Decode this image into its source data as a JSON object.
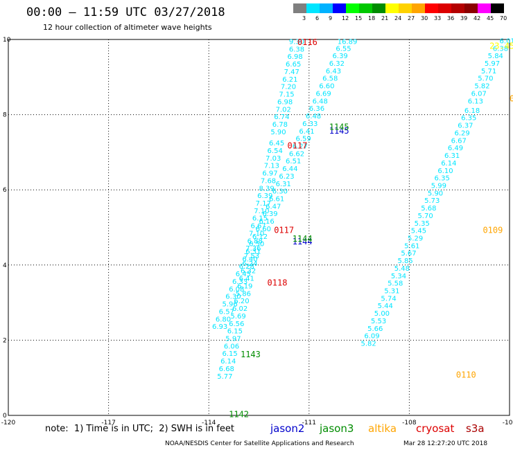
{
  "header": {
    "title": "00:00 — 11:59 UTC 03/27/2018",
    "subtitle": "12 hour collection of altimeter wave heights"
  },
  "color_scale": {
    "labels": [
      "3",
      "6",
      "9",
      "12",
      "15",
      "18",
      "21",
      "24",
      "27",
      "30",
      "33",
      "36",
      "39",
      "42",
      "45",
      "70",
      "(ft)"
    ],
    "colors": [
      "#7f7f7f",
      "#00e5ff",
      "#00b2ff",
      "#0000ff",
      "#00ff00",
      "#00c800",
      "#008c00",
      "#ffff00",
      "#ffd200",
      "#ffa500",
      "#ff0000",
      "#dc0000",
      "#b40000",
      "#8b0000",
      "#ff00ff",
      "#000000"
    ]
  },
  "footer": {
    "note": "note:  1) Time is in UTC;  2) SWH is in feet",
    "satellites": [
      {
        "name": "jason2",
        "color": "#0000cc"
      },
      {
        "name": "jason3",
        "color": "#008c00"
      },
      {
        "name": "altika",
        "color": "#ffa500"
      },
      {
        "name": "cryosat",
        "color": "#dd0000"
      },
      {
        "name": "s3a",
        "color": "#aa0000"
      }
    ],
    "credit": "NOAA/NESDIS Center for Satellite Applications and Research",
    "timestamp": "Mar 28 12:27:20 UTC 2018"
  },
  "chart_data": {
    "type": "scatter",
    "title": "00:00 — 11:59 UTC 03/27/2018",
    "subtitle": "12 hour collection of altimeter wave heights",
    "xlim": [
      -120,
      -105
    ],
    "ylim": [
      0,
      10
    ],
    "x_ticks": [
      "-120",
      "-117",
      "-114",
      "-111",
      "-108",
      "-105"
    ],
    "y_ticks": [
      "0",
      "2",
      "4",
      "6",
      "8",
      "10"
    ],
    "grid": true,
    "tracks": [
      {
        "satellite": "jason3",
        "color": "#00e5ff",
        "points": [
          {
            "x": -111.6,
            "y": 9.88,
            "v": "9.30"
          },
          {
            "x": -111.6,
            "y": 9.68,
            "v": "6.38"
          },
          {
            "x": -111.65,
            "y": 9.48,
            "v": "6.98"
          },
          {
            "x": -111.7,
            "y": 9.28,
            "v": "6.65"
          },
          {
            "x": -111.75,
            "y": 9.08,
            "v": "7.47"
          },
          {
            "x": -111.8,
            "y": 8.88,
            "v": "6.21"
          },
          {
            "x": -111.85,
            "y": 8.68,
            "v": "7.20"
          },
          {
            "x": -111.9,
            "y": 8.48,
            "v": "7.15"
          },
          {
            "x": -111.95,
            "y": 8.28,
            "v": "6.98"
          },
          {
            "x": -112.0,
            "y": 8.08,
            "v": "7.02"
          },
          {
            "x": -112.05,
            "y": 7.88,
            "v": "6.74"
          },
          {
            "x": -112.1,
            "y": 7.68,
            "v": "6.78"
          },
          {
            "x": -112.15,
            "y": 7.48,
            "v": "5.90"
          },
          {
            "x": -112.2,
            "y": 7.18,
            "v": "6.45"
          },
          {
            "x": -112.25,
            "y": 6.98,
            "v": "6.54"
          },
          {
            "x": -112.3,
            "y": 6.78,
            "v": "7.03"
          },
          {
            "x": -112.35,
            "y": 6.58,
            "v": "7.13"
          },
          {
            "x": -112.4,
            "y": 6.38,
            "v": "6.97"
          },
          {
            "x": -112.45,
            "y": 6.18,
            "v": "7.68"
          },
          {
            "x": -112.5,
            "y": 5.98,
            "v": "8.39"
          },
          {
            "x": -112.55,
            "y": 5.78,
            "v": "6.39"
          },
          {
            "x": -112.6,
            "y": 5.58,
            "v": "7.17"
          },
          {
            "x": -112.65,
            "y": 5.38,
            "v": "7.10"
          },
          {
            "x": -112.7,
            "y": 5.18,
            "v": "6.15"
          },
          {
            "x": -112.75,
            "y": 4.98,
            "v": "6.67"
          },
          {
            "x": -112.8,
            "y": 4.78,
            "v": "7.10"
          },
          {
            "x": -112.85,
            "y": 4.58,
            "v": "6.88"
          },
          {
            "x": -112.9,
            "y": 4.38,
            "v": "7.36"
          },
          {
            "x": -112.95,
            "y": 4.18,
            "v": "7.53"
          },
          {
            "x": -113.0,
            "y": 3.98,
            "v": "6.24"
          },
          {
            "x": -113.05,
            "y": 3.78,
            "v": "6.32"
          },
          {
            "x": -113.1,
            "y": 3.58,
            "v": "6.41"
          },
          {
            "x": -113.15,
            "y": 3.38,
            "v": "6.19"
          },
          {
            "x": -113.2,
            "y": 3.18,
            "v": "5.86"
          },
          {
            "x": -113.25,
            "y": 2.98,
            "v": "6.20"
          },
          {
            "x": -113.3,
            "y": 2.78,
            "v": "6.02"
          },
          {
            "x": -113.35,
            "y": 2.58,
            "v": "5.69"
          },
          {
            "x": -113.4,
            "y": 2.38,
            "v": "6.56"
          },
          {
            "x": -113.45,
            "y": 2.18,
            "v": "6.15"
          },
          {
            "x": -113.5,
            "y": 1.98,
            "v": "5.97"
          },
          {
            "x": -113.55,
            "y": 1.78,
            "v": "6.06"
          },
          {
            "x": -113.6,
            "y": 1.58,
            "v": "6.15"
          },
          {
            "x": -113.65,
            "y": 1.38,
            "v": "6.14"
          },
          {
            "x": -113.7,
            "y": 1.18,
            "v": "6.68"
          },
          {
            "x": -113.75,
            "y": 0.98,
            "v": "5.77"
          }
        ]
      },
      {
        "satellite": "jason2",
        "color": "#00e5ff",
        "points": [
          {
            "x": -110.15,
            "y": 9.88,
            "v": "16.89"
          },
          {
            "x": -110.2,
            "y": 9.7,
            "v": "6.55"
          },
          {
            "x": -110.3,
            "y": 9.5,
            "v": "6.39"
          },
          {
            "x": -110.4,
            "y": 9.3,
            "v": "6.32"
          },
          {
            "x": -110.5,
            "y": 9.1,
            "v": "6.43"
          },
          {
            "x": -110.6,
            "y": 8.9,
            "v": "6.58"
          },
          {
            "x": -110.7,
            "y": 8.7,
            "v": "6.60"
          },
          {
            "x": -110.8,
            "y": 8.5,
            "v": "6.69"
          },
          {
            "x": -110.9,
            "y": 8.3,
            "v": "6.48"
          },
          {
            "x": -111.0,
            "y": 8.1,
            "v": "6.36"
          },
          {
            "x": -111.1,
            "y": 7.9,
            "v": "6.48"
          },
          {
            "x": -111.2,
            "y": 7.7,
            "v": "6.33"
          },
          {
            "x": -111.3,
            "y": 7.5,
            "v": "6.41"
          },
          {
            "x": -111.4,
            "y": 7.3,
            "v": "6.59"
          },
          {
            "x": -111.5,
            "y": 7.1,
            "v": "6.27"
          },
          {
            "x": -111.6,
            "y": 6.9,
            "v": "6.62"
          },
          {
            "x": -111.7,
            "y": 6.7,
            "v": "6.51"
          },
          {
            "x": -111.8,
            "y": 6.5,
            "v": "6.44"
          },
          {
            "x": -111.9,
            "y": 6.3,
            "v": "6.23"
          },
          {
            "x": -112.0,
            "y": 6.1,
            "v": "6.31"
          },
          {
            "x": -112.1,
            "y": 5.9,
            "v": "6.30"
          },
          {
            "x": -112.2,
            "y": 5.7,
            "v": "6.61"
          },
          {
            "x": -112.3,
            "y": 5.5,
            "v": "6.47"
          },
          {
            "x": -112.4,
            "y": 5.3,
            "v": "6.39"
          },
          {
            "x": -112.5,
            "y": 5.1,
            "v": "6.16"
          },
          {
            "x": -112.6,
            "y": 4.9,
            "v": "6.60"
          },
          {
            "x": -112.7,
            "y": 4.7,
            "v": "6.12"
          },
          {
            "x": -112.8,
            "y": 4.5,
            "v": "6.50"
          },
          {
            "x": -112.9,
            "y": 4.3,
            "v": "6.31"
          },
          {
            "x": -113.0,
            "y": 4.1,
            "v": "6.40"
          },
          {
            "x": -113.1,
            "y": 3.9,
            "v": "6.28"
          },
          {
            "x": -113.2,
            "y": 3.7,
            "v": "6.45"
          },
          {
            "x": -113.3,
            "y": 3.5,
            "v": "6.33"
          },
          {
            "x": -113.4,
            "y": 3.3,
            "v": "6.08"
          },
          {
            "x": -113.5,
            "y": 3.1,
            "v": "6.30"
          },
          {
            "x": -113.6,
            "y": 2.9,
            "v": "5.96"
          },
          {
            "x": -113.7,
            "y": 2.7,
            "v": "6.57"
          },
          {
            "x": -113.8,
            "y": 2.5,
            "v": "6.80"
          },
          {
            "x": -113.9,
            "y": 2.3,
            "v": "6.93"
          }
        ]
      },
      {
        "satellite": "altika",
        "color": "#00e5ff",
        "points": [
          {
            "x": -105.3,
            "y": 9.9,
            "v": "6.01"
          },
          {
            "x": -105.5,
            "y": 9.7,
            "v": "6.38"
          },
          {
            "x": -105.65,
            "y": 9.5,
            "v": "5.84"
          },
          {
            "x": -105.75,
            "y": 9.3,
            "v": "5.97"
          },
          {
            "x": -105.85,
            "y": 9.1,
            "v": "5.71"
          },
          {
            "x": -105.95,
            "y": 8.9,
            "v": "5.70"
          },
          {
            "x": -106.05,
            "y": 8.7,
            "v": "5.82"
          },
          {
            "x": -106.15,
            "y": 8.5,
            "v": "6.07"
          },
          {
            "x": -106.25,
            "y": 8.3,
            "v": "6.13"
          },
          {
            "x": -106.35,
            "y": 8.05,
            "v": "6.18"
          },
          {
            "x": -106.45,
            "y": 7.85,
            "v": "6.35"
          },
          {
            "x": -106.55,
            "y": 7.65,
            "v": "6.37"
          },
          {
            "x": -106.65,
            "y": 7.45,
            "v": "6.29"
          },
          {
            "x": -106.75,
            "y": 7.25,
            "v": "6.67"
          },
          {
            "x": -106.85,
            "y": 7.05,
            "v": "6.49"
          },
          {
            "x": -106.95,
            "y": 6.85,
            "v": "6.31"
          },
          {
            "x": -107.05,
            "y": 6.65,
            "v": "6.14"
          },
          {
            "x": -107.15,
            "y": 6.45,
            "v": "6.10"
          },
          {
            "x": -107.25,
            "y": 6.25,
            "v": "6.35"
          },
          {
            "x": -107.35,
            "y": 6.05,
            "v": "5.99"
          },
          {
            "x": -107.45,
            "y": 5.85,
            "v": "5.90"
          },
          {
            "x": -107.55,
            "y": 5.65,
            "v": "5.73"
          },
          {
            "x": -107.65,
            "y": 5.45,
            "v": "5.68"
          },
          {
            "x": -107.75,
            "y": 5.25,
            "v": "5.70"
          },
          {
            "x": -107.85,
            "y": 5.05,
            "v": "5.35"
          },
          {
            "x": -107.95,
            "y": 4.85,
            "v": "5.45"
          },
          {
            "x": -108.05,
            "y": 4.65,
            "v": "5.29"
          },
          {
            "x": -108.15,
            "y": 4.45,
            "v": "5.61"
          },
          {
            "x": -108.25,
            "y": 4.25,
            "v": "5.67"
          },
          {
            "x": -108.35,
            "y": 4.05,
            "v": "5.85"
          },
          {
            "x": -108.45,
            "y": 3.85,
            "v": "5.48"
          },
          {
            "x": -108.55,
            "y": 3.65,
            "v": "5.34"
          },
          {
            "x": -108.65,
            "y": 3.45,
            "v": "5.58"
          },
          {
            "x": -108.75,
            "y": 3.25,
            "v": "5.31"
          },
          {
            "x": -108.85,
            "y": 3.05,
            "v": "5.74"
          },
          {
            "x": -108.95,
            "y": 2.85,
            "v": "5.44"
          },
          {
            "x": -109.05,
            "y": 2.65,
            "v": "5.00"
          },
          {
            "x": -109.15,
            "y": 2.45,
            "v": "5.53"
          },
          {
            "x": -109.25,
            "y": 2.25,
            "v": "5.66"
          },
          {
            "x": -109.35,
            "y": 2.05,
            "v": "6.09"
          },
          {
            "x": -109.45,
            "y": 1.85,
            "v": "5.82"
          }
        ]
      }
    ],
    "time_labels": [
      {
        "text": "0116",
        "color": "#dd0000",
        "x": -111.35,
        "y": 9.85
      },
      {
        "text": "1145",
        "color": "#0000cc",
        "x": -110.4,
        "y": 7.5
      },
      {
        "text": "1145",
        "color": "#008c00",
        "x": -110.4,
        "y": 7.6
      },
      {
        "text": "0117",
        "color": "#dd0000",
        "x": -111.65,
        "y": 7.1
      },
      {
        "text": "0117",
        "color": "#dd0000",
        "x": -112.05,
        "y": 4.85
      },
      {
        "text": "1144",
        "color": "#0000cc",
        "x": -111.5,
        "y": 4.55
      },
      {
        "text": "1144",
        "color": "#008c00",
        "x": -111.5,
        "y": 4.62
      },
      {
        "text": "0118",
        "color": "#dd0000",
        "x": -112.25,
        "y": 3.45
      },
      {
        "text": "1143",
        "color": "#008c00",
        "x": -113.05,
        "y": 1.55
      },
      {
        "text": "1142",
        "color": "#008c00",
        "x": -113.4,
        "y": -0.05
      },
      {
        "text": "0109",
        "color": "#ffa500",
        "x": -105.8,
        "y": 4.85
      },
      {
        "text": "0110",
        "color": "#ffa500",
        "x": -106.6,
        "y": 1.0
      },
      {
        "text": "01",
        "color": "#ffa500",
        "x": -105.0,
        "y": 8.35
      },
      {
        "text": "23.45",
        "color": "#ffff00",
        "x": -105.6,
        "y": 9.75
      }
    ]
  }
}
